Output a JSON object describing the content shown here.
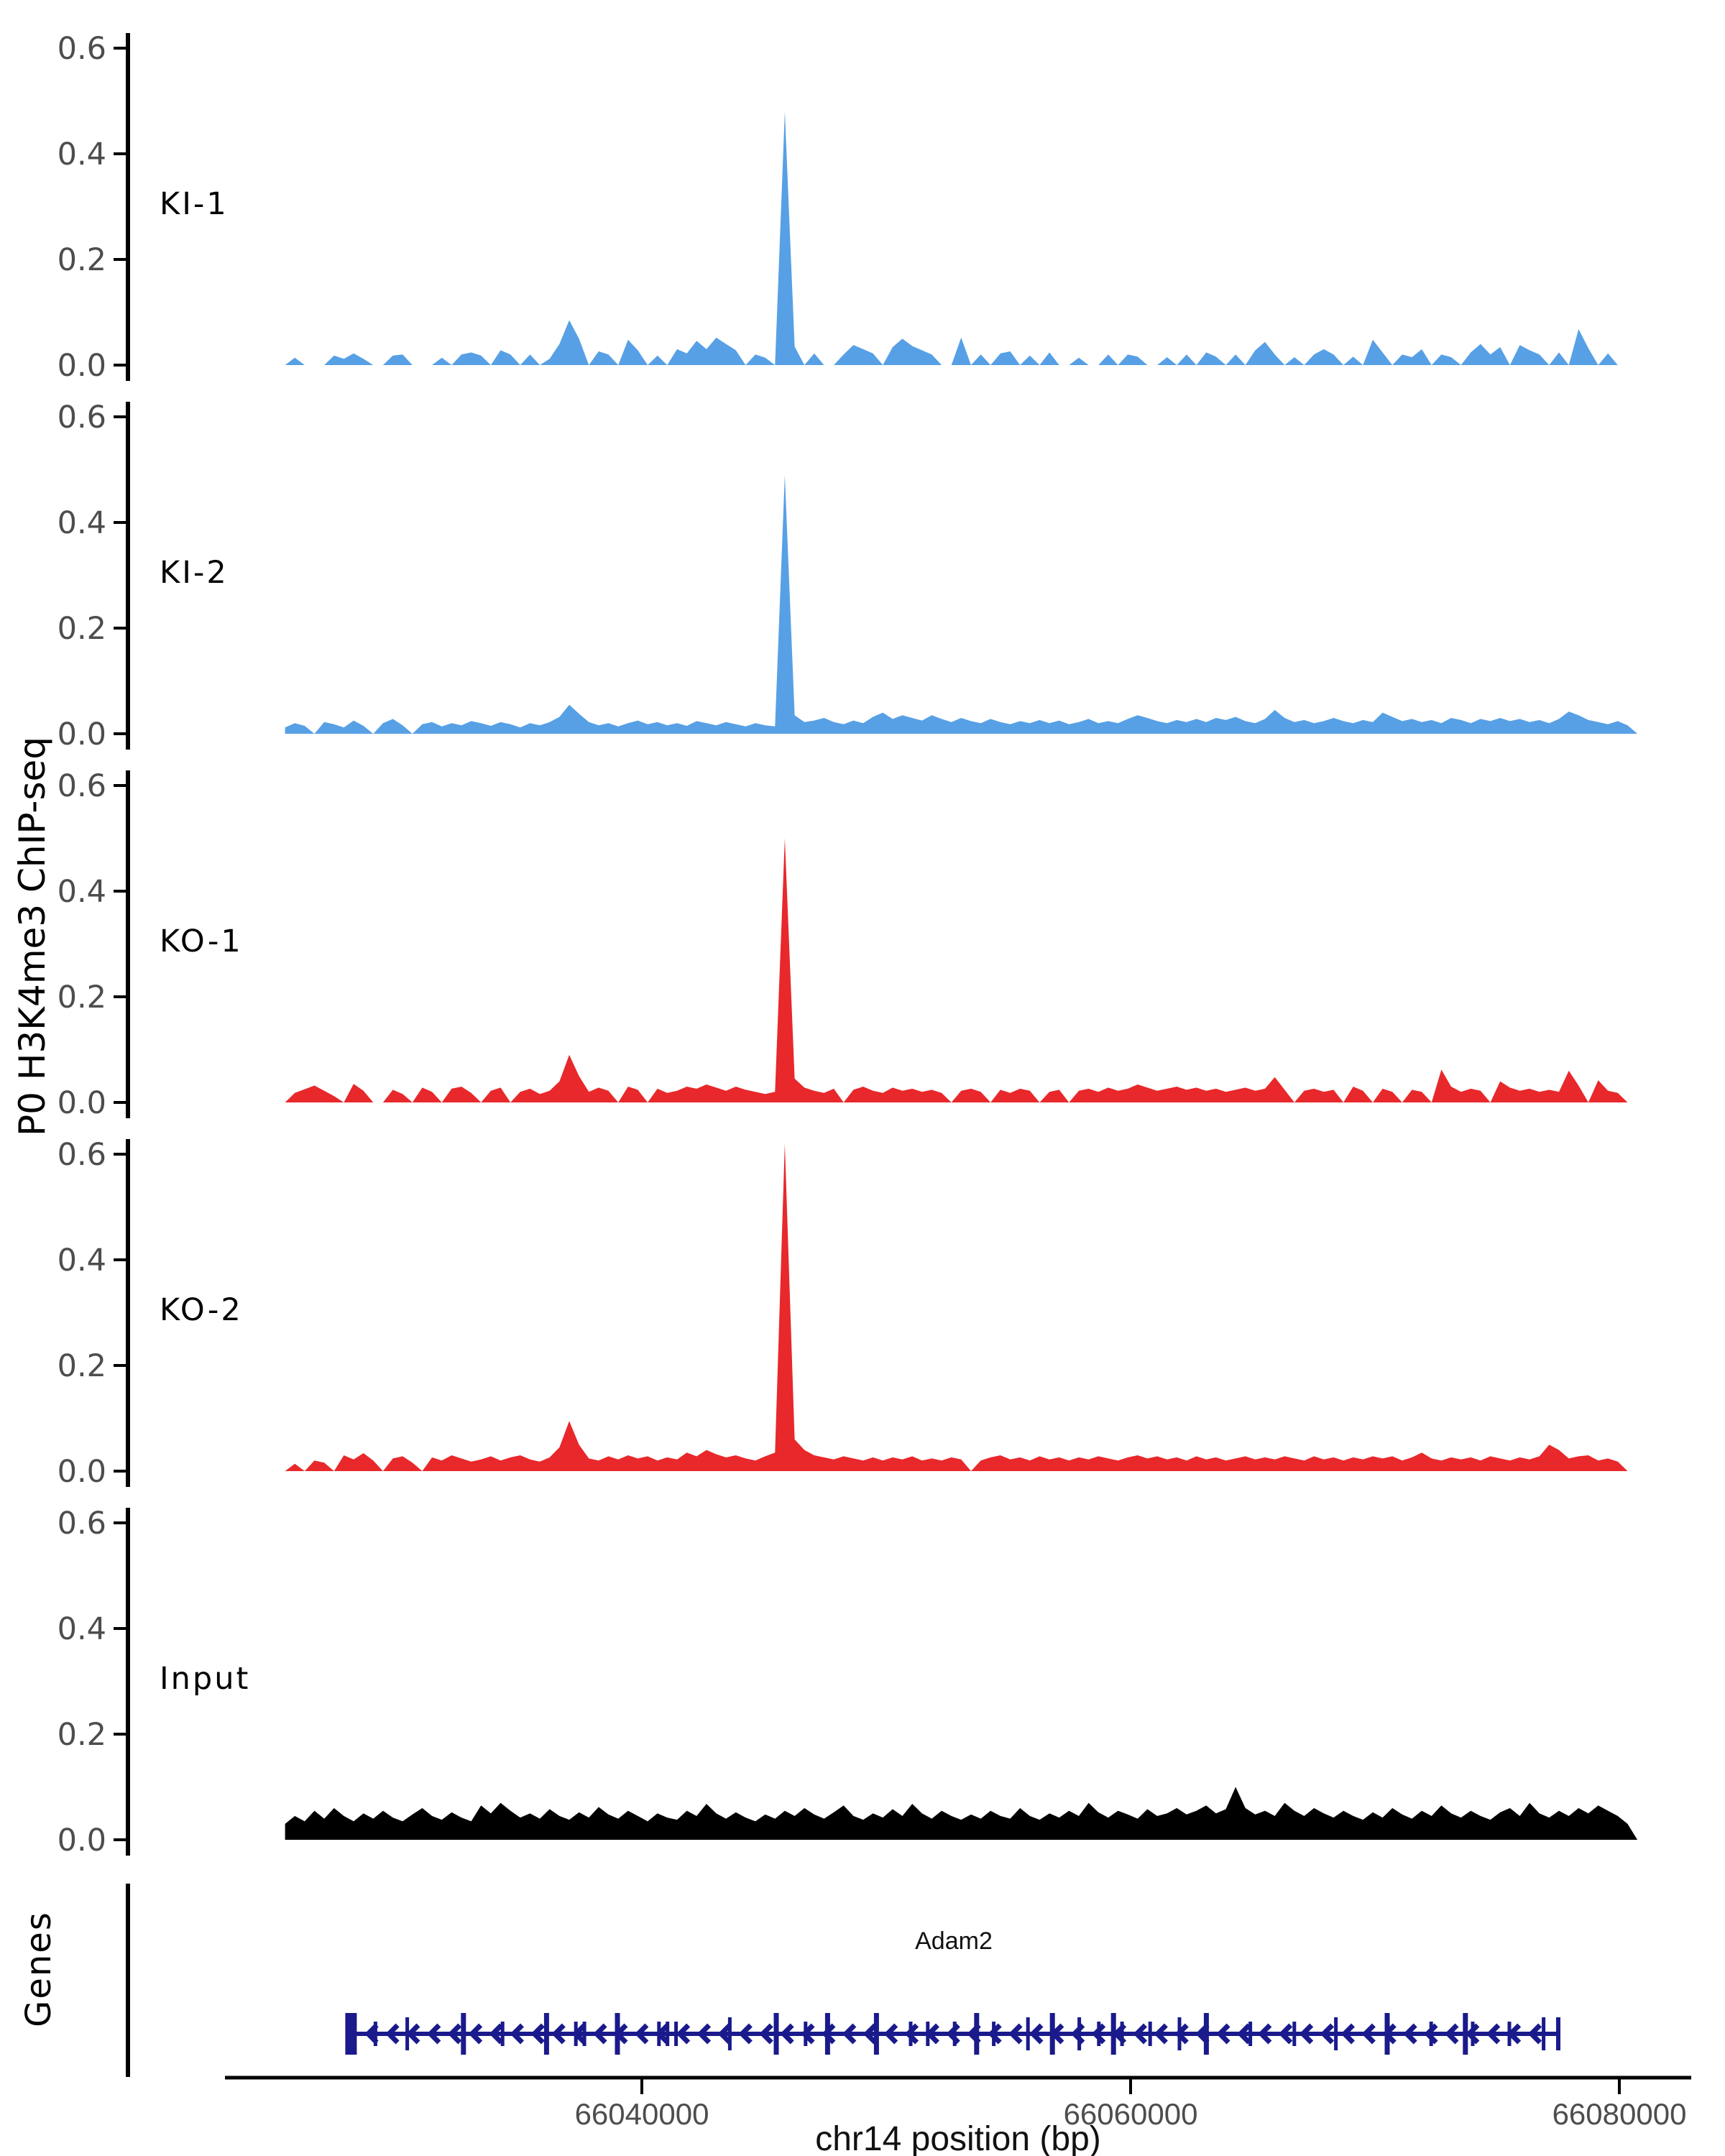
{
  "figure": {
    "y_axis_title": "P0 H3K4me3 ChIP-seq",
    "genes_panel_title": "Genes",
    "background": "#ffffff",
    "axis_color": "#000000",
    "tick_text_color": "#4d4d4d"
  },
  "chart_data": {
    "type": "area",
    "title": "",
    "xlabel": "chr14 position (bp)",
    "ylabel": "P0 H3K4me3 ChIP-seq",
    "x_axis": {
      "title": "chr14 position (bp)",
      "ticks": [
        66040000,
        66060000,
        66080000
      ],
      "range_bp": [
        66022900,
        66083800
      ],
      "data_start_bp": 66025400,
      "data_step_bp": 401
    },
    "y_axis": {
      "ticks": [
        0.0,
        0.2,
        0.4,
        0.6
      ],
      "range": [
        0,
        0.65
      ]
    },
    "legend_position": "left-inside",
    "grid": false,
    "series": [
      {
        "name": "KI-1",
        "color": "#57A0E5",
        "values": [
          0,
          0.014,
          0,
          0,
          0,
          0.018,
          0.012,
          0.022,
          0.012,
          0,
          0,
          0.018,
          0.02,
          0,
          0,
          0,
          0.014,
          0,
          0.02,
          0.024,
          0.018,
          0,
          0.028,
          0.02,
          0,
          0.02,
          0,
          0.012,
          0.04,
          0.085,
          0.05,
          0,
          0.026,
          0.02,
          0,
          0.048,
          0.028,
          0,
          0.018,
          0,
          0.03,
          0.022,
          0.046,
          0.03,
          0.052,
          0.04,
          0.028,
          0,
          0.02,
          0.014,
          0,
          0.48,
          0.035,
          0,
          0.022,
          0,
          0,
          0.02,
          0.038,
          0.03,
          0.022,
          0,
          0.034,
          0.05,
          0.036,
          0.028,
          0.02,
          0,
          0,
          0.052,
          0,
          0.02,
          0,
          0.022,
          0.026,
          0,
          0.018,
          0,
          0.024,
          0,
          0,
          0.014,
          0,
          0,
          0.02,
          0,
          0.02,
          0.016,
          0,
          0,
          0.015,
          0,
          0.02,
          0,
          0.024,
          0.016,
          0,
          0.02,
          0,
          0.028,
          0.044,
          0.02,
          0,
          0.015,
          0,
          0.02,
          0.03,
          0.02,
          0,
          0.016,
          0,
          0.048,
          0.024,
          0,
          0.02,
          0.015,
          0.03,
          0,
          0.02,
          0.015,
          0,
          0.024,
          0.04,
          0.02,
          0.034,
          0,
          0.038,
          0.028,
          0.02,
          0,
          0.024,
          0,
          0.068,
          0.032,
          0,
          0.022,
          0,
          0,
          0,
          0
        ]
      },
      {
        "name": "KI-2",
        "color": "#57A0E5",
        "values": [
          0.012,
          0.02,
          0.015,
          0,
          0.022,
          0.018,
          0.012,
          0.025,
          0.015,
          0,
          0.02,
          0.028,
          0.016,
          0,
          0.018,
          0.022,
          0.014,
          0.02,
          0.016,
          0.024,
          0.02,
          0.015,
          0.022,
          0.018,
          0.012,
          0.02,
          0.016,
          0.022,
          0.032,
          0.055,
          0.038,
          0.022,
          0.016,
          0.02,
          0.014,
          0.02,
          0.025,
          0.018,
          0.022,
          0.016,
          0.02,
          0.015,
          0.024,
          0.02,
          0.016,
          0.022,
          0.018,
          0.014,
          0.02,
          0.016,
          0.014,
          0.49,
          0.035,
          0.022,
          0.025,
          0.03,
          0.022,
          0.018,
          0.025,
          0.02,
          0.032,
          0.04,
          0.028,
          0.035,
          0.03,
          0.025,
          0.035,
          0.028,
          0.022,
          0.03,
          0.024,
          0.02,
          0.028,
          0.022,
          0.018,
          0.024,
          0.02,
          0.026,
          0.02,
          0.025,
          0.018,
          0.022,
          0.028,
          0.02,
          0.024,
          0.02,
          0.028,
          0.035,
          0.03,
          0.024,
          0.02,
          0.026,
          0.022,
          0.028,
          0.022,
          0.03,
          0.026,
          0.032,
          0.024,
          0.02,
          0.028,
          0.045,
          0.03,
          0.022,
          0.026,
          0.02,
          0.024,
          0.03,
          0.024,
          0.02,
          0.026,
          0.022,
          0.04,
          0.032,
          0.024,
          0.028,
          0.022,
          0.026,
          0.02,
          0.03,
          0.026,
          0.02,
          0.028,
          0.024,
          0.03,
          0.024,
          0.028,
          0.022,
          0.026,
          0.02,
          0.028,
          0.042,
          0.035,
          0.026,
          0.022,
          0.018,
          0.024,
          0.016,
          0,
          0
        ]
      },
      {
        "name": "KO-1",
        "color": "#E8282B",
        "values": [
          0,
          0.018,
          0.025,
          0.032,
          0.022,
          0.012,
          0,
          0.035,
          0.022,
          0,
          0,
          0.024,
          0.016,
          0,
          0.028,
          0.02,
          0,
          0.026,
          0.03,
          0.018,
          0,
          0.022,
          0.028,
          0,
          0.02,
          0.026,
          0.016,
          0.022,
          0.04,
          0.09,
          0.05,
          0.02,
          0.028,
          0.022,
          0,
          0.03,
          0.024,
          0,
          0.026,
          0.018,
          0.022,
          0.03,
          0.026,
          0.034,
          0.028,
          0.022,
          0.03,
          0.024,
          0.02,
          0.016,
          0.02,
          0.5,
          0.045,
          0.028,
          0.022,
          0.018,
          0.026,
          0,
          0.024,
          0.03,
          0.022,
          0.018,
          0.028,
          0.022,
          0.026,
          0.02,
          0.024,
          0.018,
          0,
          0.022,
          0.026,
          0.02,
          0,
          0.024,
          0.018,
          0.026,
          0.022,
          0,
          0.02,
          0.024,
          0,
          0.022,
          0.026,
          0.02,
          0.028,
          0.022,
          0.026,
          0.034,
          0.028,
          0.022,
          0.026,
          0.03,
          0.024,
          0.028,
          0.022,
          0.026,
          0.02,
          0.024,
          0.028,
          0.022,
          0.026,
          0.048,
          0.024,
          0,
          0.022,
          0.026,
          0.02,
          0.024,
          0,
          0.03,
          0.022,
          0,
          0.026,
          0.02,
          0,
          0.024,
          0.02,
          0,
          0.062,
          0.03,
          0.02,
          0.026,
          0.022,
          0,
          0.04,
          0.028,
          0.022,
          0.026,
          0.02,
          0.024,
          0.02,
          0.06,
          0.032,
          0,
          0.042,
          0.022,
          0.018,
          0,
          0,
          0
        ]
      },
      {
        "name": "KO-2",
        "color": "#E8282B",
        "values": [
          0,
          0.014,
          0,
          0.02,
          0.016,
          0,
          0.03,
          0.022,
          0.034,
          0.02,
          0,
          0.024,
          0.028,
          0.016,
          0,
          0.026,
          0.02,
          0.03,
          0.024,
          0.018,
          0.022,
          0.028,
          0.02,
          0.026,
          0.03,
          0.022,
          0.018,
          0.026,
          0.045,
          0.095,
          0.05,
          0.024,
          0.02,
          0.028,
          0.022,
          0.03,
          0.024,
          0.028,
          0.02,
          0.026,
          0.022,
          0.035,
          0.028,
          0.04,
          0.032,
          0.026,
          0.03,
          0.024,
          0.02,
          0.028,
          0.035,
          0.62,
          0.06,
          0.04,
          0.03,
          0.026,
          0.022,
          0.028,
          0.024,
          0.02,
          0.026,
          0.02,
          0.026,
          0.022,
          0.028,
          0.02,
          0.024,
          0.02,
          0.026,
          0.022,
          0,
          0.02,
          0.026,
          0.03,
          0.022,
          0.026,
          0.02,
          0.028,
          0.022,
          0.026,
          0.02,
          0.026,
          0.022,
          0.028,
          0.024,
          0.02,
          0.026,
          0.03,
          0.024,
          0.028,
          0.022,
          0.026,
          0.02,
          0.028,
          0.022,
          0.026,
          0.02,
          0.024,
          0.028,
          0.022,
          0.026,
          0.022,
          0.028,
          0.024,
          0.02,
          0.028,
          0.022,
          0.026,
          0.02,
          0.026,
          0.022,
          0.028,
          0.024,
          0.028,
          0.02,
          0.026,
          0.035,
          0.024,
          0.02,
          0.026,
          0.022,
          0.026,
          0.02,
          0.028,
          0.024,
          0.02,
          0.026,
          0.022,
          0.028,
          0.05,
          0.04,
          0.024,
          0.028,
          0.03,
          0.02,
          0.024,
          0.018,
          0,
          0,
          0
        ]
      },
      {
        "name": "Input",
        "color": "#000000",
        "values": [
          0.03,
          0.045,
          0.035,
          0.055,
          0.04,
          0.06,
          0.045,
          0.035,
          0.05,
          0.04,
          0.055,
          0.042,
          0.035,
          0.048,
          0.06,
          0.045,
          0.038,
          0.052,
          0.042,
          0.035,
          0.065,
          0.05,
          0.07,
          0.055,
          0.042,
          0.05,
          0.04,
          0.058,
          0.045,
          0.038,
          0.052,
          0.042,
          0.062,
          0.048,
          0.04,
          0.055,
          0.045,
          0.035,
          0.05,
          0.042,
          0.038,
          0.055,
          0.045,
          0.068,
          0.05,
          0.04,
          0.052,
          0.042,
          0.035,
          0.048,
          0.04,
          0.055,
          0.045,
          0.06,
          0.048,
          0.04,
          0.052,
          0.065,
          0.045,
          0.038,
          0.05,
          0.042,
          0.058,
          0.045,
          0.068,
          0.05,
          0.04,
          0.055,
          0.045,
          0.038,
          0.048,
          0.04,
          0.055,
          0.045,
          0.04,
          0.06,
          0.045,
          0.038,
          0.05,
          0.042,
          0.055,
          0.045,
          0.07,
          0.052,
          0.042,
          0.055,
          0.048,
          0.04,
          0.058,
          0.045,
          0.05,
          0.06,
          0.048,
          0.055,
          0.065,
          0.05,
          0.058,
          0.1,
          0.06,
          0.048,
          0.055,
          0.045,
          0.07,
          0.055,
          0.045,
          0.06,
          0.05,
          0.042,
          0.055,
          0.045,
          0.038,
          0.052,
          0.042,
          0.06,
          0.048,
          0.04,
          0.055,
          0.045,
          0.065,
          0.05,
          0.042,
          0.055,
          0.045,
          0.038,
          0.052,
          0.06,
          0.045,
          0.07,
          0.05,
          0.042,
          0.055,
          0.045,
          0.06,
          0.05,
          0.065,
          0.055,
          0.045,
          0.03,
          0,
          0
        ]
      }
    ],
    "gene": {
      "name": "Adam2",
      "strand": "-",
      "color": "#1A1A8C",
      "start_bp": 66028100,
      "end_bp": 66077500,
      "exons": [
        [
          66029100,
          "s"
        ],
        [
          66030400,
          "m"
        ],
        [
          66032700,
          "l"
        ],
        [
          66034300,
          "s"
        ],
        [
          66036100,
          "l"
        ],
        [
          66037300,
          "s"
        ],
        [
          66037650,
          "s"
        ],
        [
          66039000,
          "l"
        ],
        [
          66040700,
          "s"
        ],
        [
          66041050,
          "s"
        ],
        [
          66041400,
          "s"
        ],
        [
          66043600,
          "m"
        ],
        [
          66045500,
          "l"
        ],
        [
          66046700,
          "s"
        ],
        [
          66047600,
          "l"
        ],
        [
          66049600,
          "l"
        ],
        [
          66051000,
          "s"
        ],
        [
          66051700,
          "s"
        ],
        [
          66052800,
          "s"
        ],
        [
          66053700,
          "l"
        ],
        [
          66054400,
          "s"
        ],
        [
          66055800,
          "m"
        ],
        [
          66056800,
          "l"
        ],
        [
          66057900,
          "m"
        ],
        [
          66058700,
          "s"
        ],
        [
          66059300,
          "l"
        ],
        [
          66059650,
          "s"
        ],
        [
          66060800,
          "s"
        ],
        [
          66062000,
          "m"
        ],
        [
          66063100,
          "l"
        ],
        [
          66064900,
          "s"
        ],
        [
          66066700,
          "s"
        ],
        [
          66068400,
          "m"
        ],
        [
          66070500,
          "l"
        ],
        [
          66072300,
          "s"
        ],
        [
          66073700,
          "l"
        ],
        [
          66074000,
          "s"
        ],
        [
          66075500,
          "s"
        ],
        [
          66076900,
          "m"
        ]
      ]
    }
  }
}
